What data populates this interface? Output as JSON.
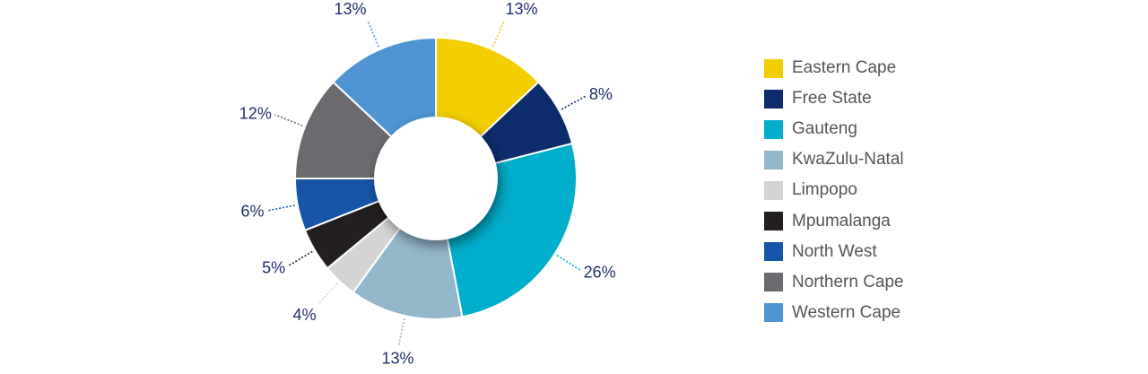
{
  "chart_data": {
    "type": "pie",
    "variant": "donut",
    "categories": [
      "Eastern Cape",
      "Free State",
      "Gauteng",
      "KwaZulu-Natal",
      "Limpopo",
      "Mpumalanga",
      "North West",
      "Northern Cape",
      "Western Cape"
    ],
    "values": [
      13,
      8,
      26,
      13,
      4,
      5,
      6,
      12,
      13
    ],
    "labels": [
      "13%",
      "8%",
      "26%",
      "13%",
      "4%",
      "5%",
      "6%",
      "12%",
      "13%"
    ],
    "colors": [
      "#f2cd00",
      "#0d2c6c",
      "#00aecb",
      "#93b7cb",
      "#d4d4d4",
      "#231f20",
      "#1655a8",
      "#6a6a6f",
      "#4f95d3"
    ],
    "legend_position": "right"
  }
}
